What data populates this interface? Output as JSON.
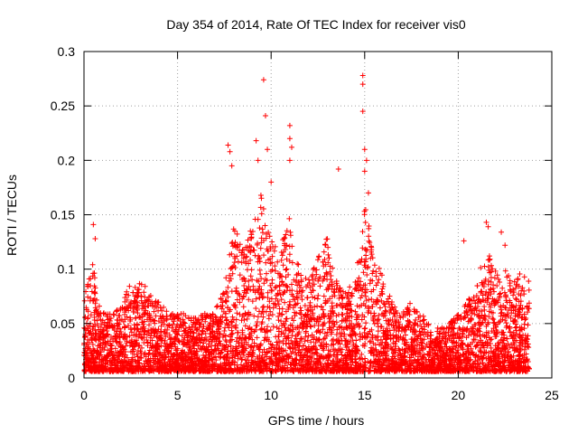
{
  "chart_data": {
    "type": "scatter",
    "title": "Day 354 of 2014, Rate Of TEC Index for receiver vis0",
    "xlabel": "GPS time / hours",
    "ylabel": "ROTI / TECUs",
    "xlim": [
      0,
      25
    ],
    "ylim": [
      0,
      0.3
    ],
    "x_ticks": [
      "0",
      "5",
      "10",
      "15",
      "20",
      "25"
    ],
    "y_ticks": [
      "0",
      "0.05",
      "0.1",
      "0.15",
      "0.2",
      "0.25",
      "0.3"
    ],
    "grid": true,
    "marker": "+",
    "color": "#ff0000",
    "data_range_x": [
      0,
      23.8
    ],
    "envelope": [
      [
        0.0,
        0.07
      ],
      [
        0.25,
        0.1
      ],
      [
        0.45,
        0.12
      ],
      [
        0.7,
        0.07
      ],
      [
        1.0,
        0.06
      ],
      [
        1.5,
        0.06
      ],
      [
        2.0,
        0.07
      ],
      [
        2.5,
        0.09
      ],
      [
        3.0,
        0.09
      ],
      [
        3.5,
        0.08
      ],
      [
        4.0,
        0.07
      ],
      [
        4.5,
        0.06
      ],
      [
        5.0,
        0.06
      ],
      [
        5.5,
        0.06
      ],
      [
        6.0,
        0.055
      ],
      [
        6.5,
        0.06
      ],
      [
        7.0,
        0.06
      ],
      [
        7.5,
        0.09
      ],
      [
        8.0,
        0.14
      ],
      [
        8.5,
        0.12
      ],
      [
        9.0,
        0.15
      ],
      [
        9.5,
        0.17
      ],
      [
        10.0,
        0.13
      ],
      [
        10.5,
        0.12
      ],
      [
        11.0,
        0.15
      ],
      [
        11.5,
        0.1
      ],
      [
        12.0,
        0.09
      ],
      [
        12.5,
        0.11
      ],
      [
        13.0,
        0.13
      ],
      [
        13.5,
        0.09
      ],
      [
        14.0,
        0.08
      ],
      [
        14.5,
        0.09
      ],
      [
        15.0,
        0.16
      ],
      [
        15.5,
        0.12
      ],
      [
        16.0,
        0.09
      ],
      [
        16.5,
        0.07
      ],
      [
        17.0,
        0.06
      ],
      [
        17.5,
        0.07
      ],
      [
        18.0,
        0.06
      ],
      [
        18.5,
        0.05
      ],
      [
        19.0,
        0.045
      ],
      [
        19.5,
        0.05
      ],
      [
        20.0,
        0.06
      ],
      [
        20.5,
        0.07
      ],
      [
        21.0,
        0.09
      ],
      [
        21.5,
        0.12
      ],
      [
        22.0,
        0.1
      ],
      [
        22.5,
        0.1
      ],
      [
        23.0,
        0.09
      ],
      [
        23.5,
        0.1
      ],
      [
        23.8,
        0.09
      ]
    ],
    "notable_points": [
      [
        0.5,
        0.141
      ],
      [
        0.6,
        0.128
      ],
      [
        7.7,
        0.214
      ],
      [
        7.8,
        0.208
      ],
      [
        7.9,
        0.195
      ],
      [
        9.2,
        0.218
      ],
      [
        9.3,
        0.2
      ],
      [
        9.6,
        0.274
      ],
      [
        9.7,
        0.241
      ],
      [
        9.8,
        0.21
      ],
      [
        10.0,
        0.18
      ],
      [
        11.0,
        0.232
      ],
      [
        11.0,
        0.22
      ],
      [
        11.1,
        0.212
      ],
      [
        11.0,
        0.2
      ],
      [
        13.6,
        0.192
      ],
      [
        14.9,
        0.278
      ],
      [
        14.9,
        0.27
      ],
      [
        14.9,
        0.245
      ],
      [
        15.0,
        0.21
      ],
      [
        15.1,
        0.2
      ],
      [
        15.0,
        0.19
      ],
      [
        15.2,
        0.17
      ],
      [
        20.3,
        0.126
      ],
      [
        21.5,
        0.143
      ],
      [
        21.6,
        0.139
      ],
      [
        22.3,
        0.134
      ],
      [
        22.5,
        0.122
      ]
    ]
  }
}
